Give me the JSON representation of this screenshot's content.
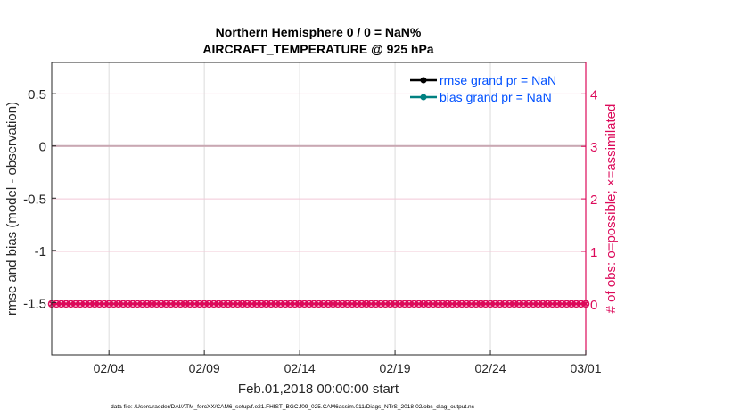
{
  "chart_data": {
    "type": "line",
    "title_line1": "Northern Hemisphere 0 / 0 = NaN%",
    "title_line2": "AIRCRAFT_TEMPERATURE @ 925 hPa",
    "xlabel": "Feb.01,2018 00:00:00 start",
    "ylabel_left": "rmse and bias (model - observation)",
    "ylabel_right": "# of obs: o=possible; ×=assimilated",
    "xlim_days": [
      1,
      29
    ],
    "x_ticks": [
      {
        "day": 4,
        "label": "02/04"
      },
      {
        "day": 9,
        "label": "02/09"
      },
      {
        "day": 14,
        "label": "02/14"
      },
      {
        "day": 19,
        "label": "02/19"
      },
      {
        "day": 24,
        "label": "02/24"
      },
      {
        "day": 29,
        "label": "03/01"
      }
    ],
    "ylim_left": [
      -2,
      0.8
    ],
    "y_ticks_left": [
      0.5,
      0,
      -0.5,
      -1,
      -1.5
    ],
    "y_tick_labels_left": [
      "0.5",
      "0",
      "-0.5",
      "-1",
      "-1.5"
    ],
    "ylim_right": [
      -0.97,
      4.6
    ],
    "y_ticks_right": [
      0,
      1,
      2,
      3,
      4
    ],
    "y_tick_labels_right": [
      "0",
      "1",
      "2",
      "3",
      "4"
    ],
    "series": [
      {
        "name": "rmse grand pr = NaN",
        "color": "#000000",
        "values": []
      },
      {
        "name": "bias grand pr = NaN",
        "color": "#008080",
        "values": []
      },
      {
        "name": "obs count",
        "axis": "right",
        "color": "#dc0a5a",
        "value_all": 0,
        "points_per_day": 4
      }
    ],
    "legend_position": "top-right",
    "legend_color": "#0050ff",
    "right_axis_color": "#dc0a5a",
    "footer": "data file: /Users/raeder/DAI/ATM_forcXX/CAM6_setup/f.e21.FHIST_BGC.f09_025.CAM6assim.011/Diags_NTrS_2018-02/obs_diag_output.nc"
  }
}
